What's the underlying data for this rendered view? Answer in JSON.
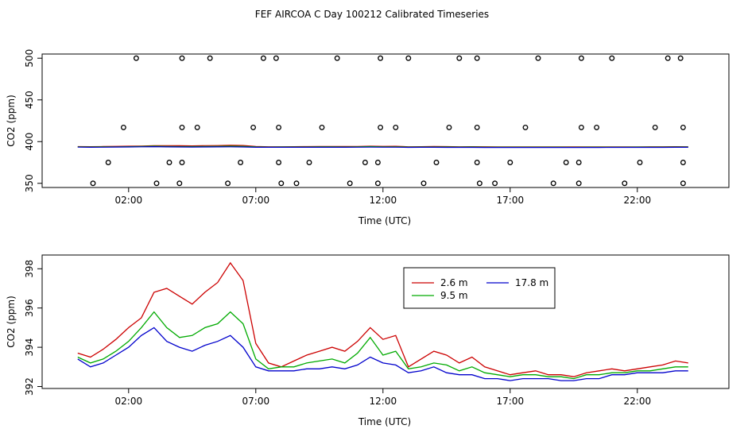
{
  "chart_data": [
    {
      "type": "scatter",
      "title": "FEF AIRCOA C  Day 100212  Calibrated Timeseries",
      "xlabel": "Time (UTC)",
      "ylabel": "CO2 (ppm)",
      "xlim": [
        -1.4,
        25.6
      ],
      "ylim": [
        345,
        505
      ],
      "xticks": [
        2,
        7,
        12,
        17,
        22
      ],
      "xtick_labels": [
        "02:00",
        "07:00",
        "12:00",
        "17:00",
        "22:00"
      ],
      "yticks": [
        350,
        400,
        450,
        500
      ],
      "ytick_labels": [
        "350",
        "400",
        "450",
        "500"
      ],
      "line_colors": [
        "#cc0000",
        "#00aa00",
        "#0000cc"
      ],
      "background_mean": 394,
      "calibration_points": [
        [
          0.6,
          350
        ],
        [
          1.2,
          375
        ],
        [
          1.8,
          417
        ],
        [
          2.3,
          500
        ],
        [
          3.1,
          350
        ],
        [
          3.6,
          375
        ],
        [
          4.0,
          350
        ],
        [
          4.1,
          375
        ],
        [
          4.1,
          417
        ],
        [
          4.1,
          500
        ],
        [
          4.7,
          417
        ],
        [
          5.2,
          500
        ],
        [
          5.9,
          350
        ],
        [
          6.4,
          375
        ],
        [
          6.9,
          417
        ],
        [
          7.3,
          500
        ],
        [
          7.8,
          500
        ],
        [
          7.9,
          417
        ],
        [
          7.9,
          375
        ],
        [
          8.0,
          350
        ],
        [
          8.6,
          350
        ],
        [
          9.1,
          375
        ],
        [
          9.6,
          417
        ],
        [
          10.2,
          500
        ],
        [
          10.7,
          350
        ],
        [
          11.3,
          375
        ],
        [
          11.8,
          350
        ],
        [
          11.8,
          375
        ],
        [
          11.9,
          417
        ],
        [
          11.9,
          500
        ],
        [
          12.5,
          417
        ],
        [
          13.0,
          500
        ],
        [
          13.6,
          350
        ],
        [
          14.1,
          375
        ],
        [
          14.6,
          417
        ],
        [
          15.0,
          500
        ],
        [
          15.7,
          417
        ],
        [
          15.7,
          500
        ],
        [
          15.7,
          375
        ],
        [
          15.8,
          350
        ],
        [
          16.4,
          350
        ],
        [
          17.0,
          375
        ],
        [
          17.6,
          417
        ],
        [
          18.1,
          500
        ],
        [
          18.7,
          350
        ],
        [
          19.2,
          375
        ],
        [
          19.7,
          350
        ],
        [
          19.7,
          375
        ],
        [
          19.8,
          417
        ],
        [
          19.8,
          500
        ],
        [
          20.4,
          417
        ],
        [
          21.0,
          500
        ],
        [
          21.5,
          350
        ],
        [
          22.1,
          375
        ],
        [
          22.7,
          417
        ],
        [
          23.2,
          500
        ],
        [
          23.7,
          500
        ],
        [
          23.8,
          417
        ],
        [
          23.8,
          375
        ],
        [
          23.8,
          350
        ]
      ]
    },
    {
      "type": "line",
      "xlabel": "Time (UTC)",
      "ylabel": "CO2 (ppm)",
      "xlim": [
        -1.4,
        25.6
      ],
      "ylim": [
        391.9,
        398.7
      ],
      "xticks": [
        2,
        7,
        12,
        17,
        22
      ],
      "xtick_labels": [
        "02:00",
        "07:00",
        "12:00",
        "17:00",
        "22:00"
      ],
      "yticks": [
        392,
        394,
        396,
        398
      ],
      "ytick_labels": [
        "392",
        "394",
        "396",
        "398"
      ],
      "legend_position": "top-center",
      "x": [
        0.0,
        0.5,
        1.0,
        1.5,
        2.0,
        2.5,
        3.0,
        3.5,
        4.0,
        4.5,
        5.0,
        5.5,
        6.0,
        6.5,
        7.0,
        7.5,
        8.0,
        8.5,
        9.0,
        9.5,
        10.0,
        10.5,
        11.0,
        11.5,
        12.0,
        12.5,
        13.0,
        13.5,
        14.0,
        14.5,
        15.0,
        15.5,
        16.0,
        16.5,
        17.0,
        17.5,
        18.0,
        18.5,
        19.0,
        19.5,
        20.0,
        20.5,
        21.0,
        21.5,
        22.0,
        22.5,
        23.0,
        23.5,
        24.0
      ],
      "series": [
        {
          "name": "2.6 m",
          "color": "#cc0000",
          "values": [
            393.7,
            393.5,
            393.9,
            394.4,
            395.0,
            395.5,
            396.8,
            397.0,
            396.6,
            396.2,
            396.8,
            397.3,
            398.3,
            397.4,
            394.2,
            393.2,
            393.0,
            393.3,
            393.6,
            393.8,
            394.0,
            393.8,
            394.3,
            395.0,
            394.4,
            394.6,
            393.0,
            393.4,
            393.8,
            393.6,
            393.2,
            393.5,
            393.0,
            392.8,
            392.6,
            392.7,
            392.8,
            392.6,
            392.6,
            392.5,
            392.7,
            392.8,
            392.9,
            392.8,
            392.9,
            393.0,
            393.1,
            393.3,
            393.2
          ]
        },
        {
          "name": "9.5 m",
          "color": "#00aa00",
          "values": [
            393.5,
            393.2,
            393.4,
            393.8,
            394.3,
            395.0,
            395.8,
            395.0,
            394.5,
            394.6,
            395.0,
            395.2,
            395.8,
            395.2,
            393.4,
            392.9,
            393.0,
            393.0,
            393.2,
            393.3,
            393.4,
            393.2,
            393.7,
            394.5,
            393.6,
            393.8,
            392.9,
            393.0,
            393.2,
            393.1,
            392.8,
            393.0,
            392.7,
            392.6,
            392.5,
            392.6,
            392.6,
            392.5,
            392.5,
            392.4,
            392.6,
            392.6,
            392.7,
            392.7,
            392.8,
            392.8,
            392.9,
            393.0,
            393.0
          ]
        },
        {
          "name": "17.8 m",
          "color": "#0000cc",
          "values": [
            393.4,
            393.0,
            393.2,
            393.6,
            394.0,
            394.6,
            395.0,
            394.3,
            394.0,
            393.8,
            394.1,
            394.3,
            394.6,
            394.0,
            393.0,
            392.8,
            392.8,
            392.8,
            392.9,
            392.9,
            393.0,
            392.9,
            393.1,
            393.5,
            393.2,
            393.1,
            392.7,
            392.8,
            393.0,
            392.7,
            392.6,
            392.6,
            392.4,
            392.4,
            392.3,
            392.4,
            392.4,
            392.4,
            392.3,
            392.3,
            392.4,
            392.4,
            392.6,
            392.6,
            392.7,
            392.7,
            392.7,
            392.8,
            392.8
          ]
        }
      ]
    }
  ]
}
